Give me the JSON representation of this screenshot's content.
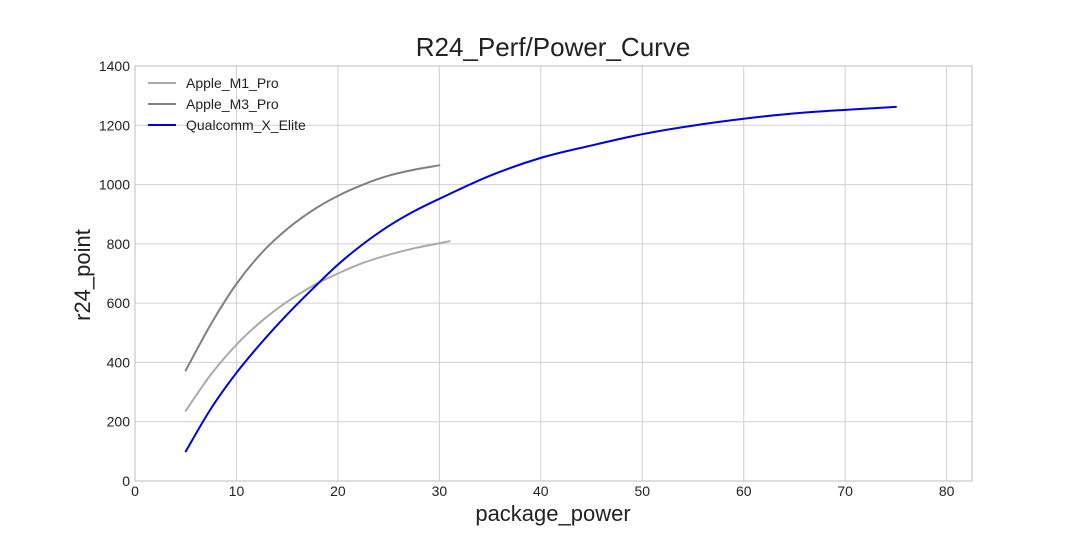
{
  "chart_data": {
    "type": "line",
    "title": "R24_Perf/Power_Curve",
    "xlabel": "package_power",
    "ylabel": "r24_point",
    "xlim": [
      0,
      82.5
    ],
    "ylim": [
      0,
      1400
    ],
    "xticks": [
      0,
      10,
      20,
      30,
      40,
      50,
      60,
      70,
      80
    ],
    "yticks": [
      0,
      200,
      400,
      600,
      800,
      1000,
      1200,
      1400
    ],
    "grid": true,
    "legend_position": "top-left",
    "series": [
      {
        "name": "Apple_M1_Pro",
        "color": "#aaaaaa",
        "x": [
          5,
          7.5,
          10,
          12.5,
          15,
          17.5,
          20,
          22.5,
          25,
          27.5,
          30,
          31
        ],
        "y": [
          237,
          360,
          460,
          540,
          605,
          658,
          700,
          736,
          763,
          785,
          802,
          809
        ]
      },
      {
        "name": "Apple_M3_Pro",
        "color": "#808080",
        "x": [
          5,
          7.5,
          10,
          12.5,
          15,
          17.5,
          20,
          22.5,
          25,
          27.5,
          30
        ],
        "y": [
          373,
          530,
          665,
          770,
          850,
          913,
          962,
          1000,
          1030,
          1050,
          1065
        ]
      },
      {
        "name": "Qualcomm_X_Elite",
        "color": "#0000dd",
        "x": [
          5,
          7.5,
          10,
          12.5,
          15,
          17.5,
          20,
          22.5,
          25,
          27.5,
          30,
          35,
          40,
          45,
          50,
          55,
          60,
          65,
          70,
          75
        ],
        "y": [
          100,
          245,
          365,
          468,
          562,
          648,
          730,
          800,
          860,
          910,
          952,
          1030,
          1090,
          1132,
          1170,
          1199,
          1222,
          1240,
          1252,
          1262
        ]
      }
    ]
  }
}
